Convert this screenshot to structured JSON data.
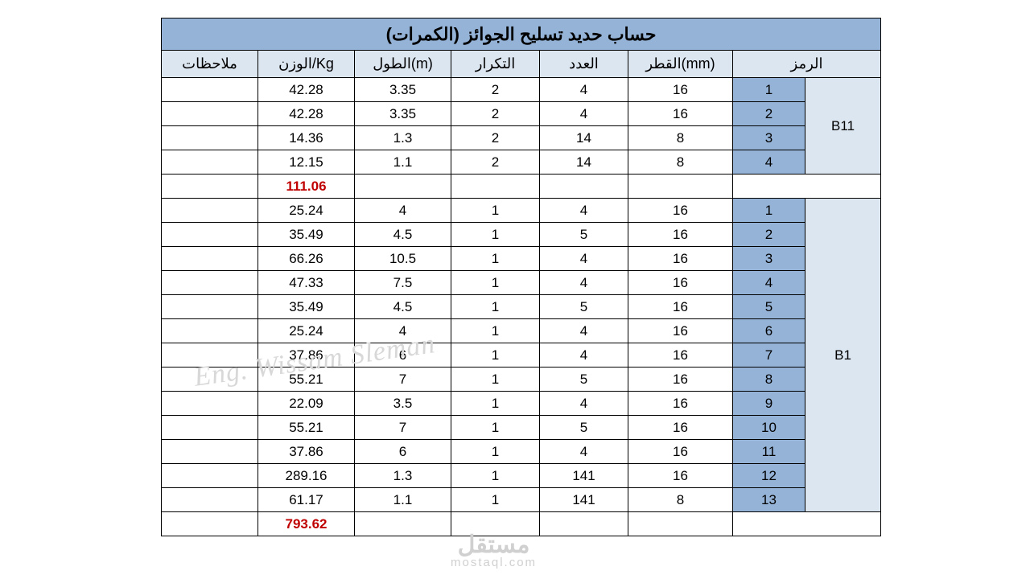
{
  "title": "حساب حديد تسليح الجوائز (الكمرات)",
  "headers": {
    "notes": "ملاحظات",
    "weight": "الوزن/Kg",
    "length": "الطول(m)",
    "repeat": "التكرار",
    "count": "العدد",
    "diameter": "القطر(mm)",
    "symbol": "الرمز"
  },
  "watermark1": "Eng. Wissam Sleman",
  "watermark2_ar": "مستقل",
  "watermark2_en": "mostaql.com",
  "colors": {
    "header_bg": "#95b3d7",
    "subheader_bg": "#dce6f1",
    "total_color": "#c00000",
    "border": "#000000",
    "background": "#ffffff"
  },
  "groups": [
    {
      "label": "B11",
      "rows": [
        {
          "notes": "",
          "weight": "42.28",
          "length": "3.35",
          "repeat": "2",
          "count": "4",
          "diameter": "16",
          "num": "1"
        },
        {
          "notes": "",
          "weight": "42.28",
          "length": "3.35",
          "repeat": "2",
          "count": "4",
          "diameter": "16",
          "num": "2"
        },
        {
          "notes": "",
          "weight": "14.36",
          "length": "1.3",
          "repeat": "2",
          "count": "14",
          "diameter": "8",
          "num": "3"
        },
        {
          "notes": "",
          "weight": "12.15",
          "length": "1.1",
          "repeat": "2",
          "count": "14",
          "diameter": "8",
          "num": "4"
        }
      ],
      "total": "111.06"
    },
    {
      "label": "B1",
      "rows": [
        {
          "notes": "",
          "weight": "25.24",
          "length": "4",
          "repeat": "1",
          "count": "4",
          "diameter": "16",
          "num": "1"
        },
        {
          "notes": "",
          "weight": "35.49",
          "length": "4.5",
          "repeat": "1",
          "count": "5",
          "diameter": "16",
          "num": "2"
        },
        {
          "notes": "",
          "weight": "66.26",
          "length": "10.5",
          "repeat": "1",
          "count": "4",
          "diameter": "16",
          "num": "3"
        },
        {
          "notes": "",
          "weight": "47.33",
          "length": "7.5",
          "repeat": "1",
          "count": "4",
          "diameter": "16",
          "num": "4"
        },
        {
          "notes": "",
          "weight": "35.49",
          "length": "4.5",
          "repeat": "1",
          "count": "5",
          "diameter": "16",
          "num": "5"
        },
        {
          "notes": "",
          "weight": "25.24",
          "length": "4",
          "repeat": "1",
          "count": "4",
          "diameter": "16",
          "num": "6"
        },
        {
          "notes": "",
          "weight": "37.86",
          "length": "6",
          "repeat": "1",
          "count": "4",
          "diameter": "16",
          "num": "7"
        },
        {
          "notes": "",
          "weight": "55.21",
          "length": "7",
          "repeat": "1",
          "count": "5",
          "diameter": "16",
          "num": "8"
        },
        {
          "notes": "",
          "weight": "22.09",
          "length": "3.5",
          "repeat": "1",
          "count": "4",
          "diameter": "16",
          "num": "9"
        },
        {
          "notes": "",
          "weight": "55.21",
          "length": "7",
          "repeat": "1",
          "count": "5",
          "diameter": "16",
          "num": "10"
        },
        {
          "notes": "",
          "weight": "37.86",
          "length": "6",
          "repeat": "1",
          "count": "4",
          "diameter": "16",
          "num": "11"
        },
        {
          "notes": "",
          "weight": "289.16",
          "length": "1.3",
          "repeat": "1",
          "count": "141",
          "diameter": "16",
          "num": "12"
        },
        {
          "notes": "",
          "weight": "61.17",
          "length": "1.1",
          "repeat": "1",
          "count": "141",
          "diameter": "8",
          "num": "13"
        }
      ],
      "total": "793.62"
    }
  ]
}
